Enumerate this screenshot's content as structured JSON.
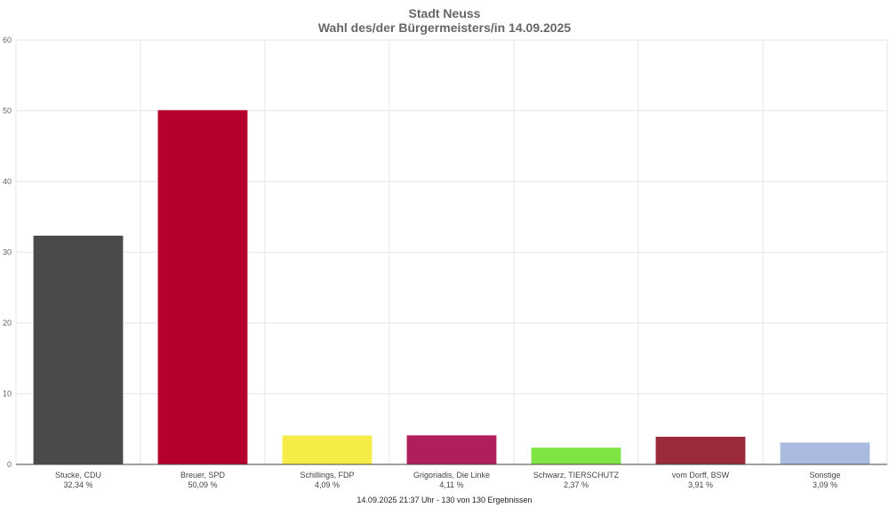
{
  "chart_data": {
    "type": "bar",
    "title": "Stadt Neuss",
    "subtitle": "Wahl des/der Bürgermeisters/in 14.09.2025",
    "categories": [
      "Stucke, CDU",
      "Breuer, SPD",
      "Schillings, FDP",
      "Grigoriadis, Die Linke",
      "Schwarz, TIERSCHUTZ",
      "vom Dorff, BSW",
      "Sonstige"
    ],
    "value_labels": [
      "32,34 %",
      "50,09 %",
      "4,09 %",
      "4,11 %",
      "2,37 %",
      "3,91 %",
      "3,09 %"
    ],
    "values": [
      32.34,
      50.09,
      4.09,
      4.11,
      2.37,
      3.91,
      3.09
    ],
    "colors": [
      "#4a4a4a",
      "#b5002d",
      "#f5ec48",
      "#b01f5c",
      "#7fe545",
      "#9b2a3c",
      "#abbbe0"
    ],
    "ylim": [
      0,
      60
    ],
    "yticks": [
      0,
      10,
      20,
      30,
      40,
      50,
      60
    ],
    "grid": true,
    "xlabel": "",
    "ylabel": ""
  },
  "footer": "14.09.2025 21:37 Uhr - 130 von 130 Ergebnissen"
}
